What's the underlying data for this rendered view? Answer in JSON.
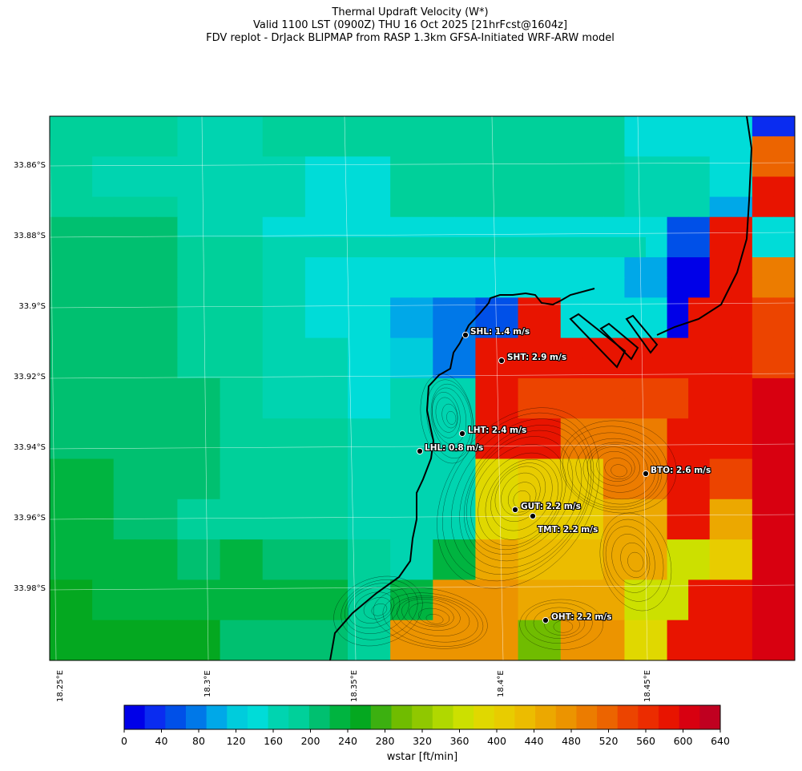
{
  "title": {
    "line1": "Thermal Updraft Velocity (W*)",
    "line2": "Valid 1100 LST (0900Z) THU 16 Oct 2025 [21hrFcst@1604z]",
    "line3": "FDV replot - DrJack BLIPMAP from RASP 1.3km GFSA-Initiated WRF-ARW model"
  },
  "lat_ticks": [
    "33.86°S",
    "33.88°S",
    "33.9°S",
    "33.92°S",
    "33.94°S",
    "33.96°S",
    "33.98°S"
  ],
  "lon_ticks": [
    "18.25°E",
    "18.3°E",
    "18.35°E",
    "18.4°E",
    "18.45°E"
  ],
  "stations": [
    {
      "code": "SHL",
      "label": "SHL: 1.4 m/s",
      "value_ms": 1.4
    },
    {
      "code": "SHT",
      "label": "SHT: 2.9 m/s",
      "value_ms": 2.9
    },
    {
      "code": "LHT",
      "label": "LHT: 2.4 m/s",
      "value_ms": 2.4
    },
    {
      "code": "LHL",
      "label": "LHL: 0.8 m/s",
      "value_ms": 0.8
    },
    {
      "code": "BTO",
      "label": "BTO: 2.6 m/s",
      "value_ms": 2.6
    },
    {
      "code": "GUT",
      "label": "GUT: 2.2 m/s",
      "value_ms": 2.2
    },
    {
      "code": "TMT",
      "label": "TMT: 2.2 m/s",
      "value_ms": 2.2
    },
    {
      "code": "OHT",
      "label": "OHT: 2.2 m/s",
      "value_ms": 2.2
    }
  ],
  "colorbar": {
    "label": "wstar [ft/min]",
    "min": 0,
    "max": 640,
    "step": 20,
    "tick_labels": [
      "0",
      "40",
      "80",
      "120",
      "160",
      "200",
      "240",
      "280",
      "320",
      "360",
      "400",
      "440",
      "480",
      "520",
      "560",
      "600",
      "640"
    ],
    "colors": [
      "#0000e8",
      "#0a2cf0",
      "#0050e8",
      "#0078e8",
      "#00a8e8",
      "#00ccdc",
      "#00dcd8",
      "#00d4b0",
      "#00d09a",
      "#00c070",
      "#00b440",
      "#04a820",
      "#3cb010",
      "#70bc00",
      "#90c800",
      "#b0d800",
      "#cce000",
      "#e0d800",
      "#e8cc00",
      "#ecbc00",
      "#eca800",
      "#ec9400",
      "#ec7c00",
      "#ec6400",
      "#ec4400",
      "#ec2c00",
      "#e81400",
      "#d80010",
      "#c00020"
    ]
  }
}
